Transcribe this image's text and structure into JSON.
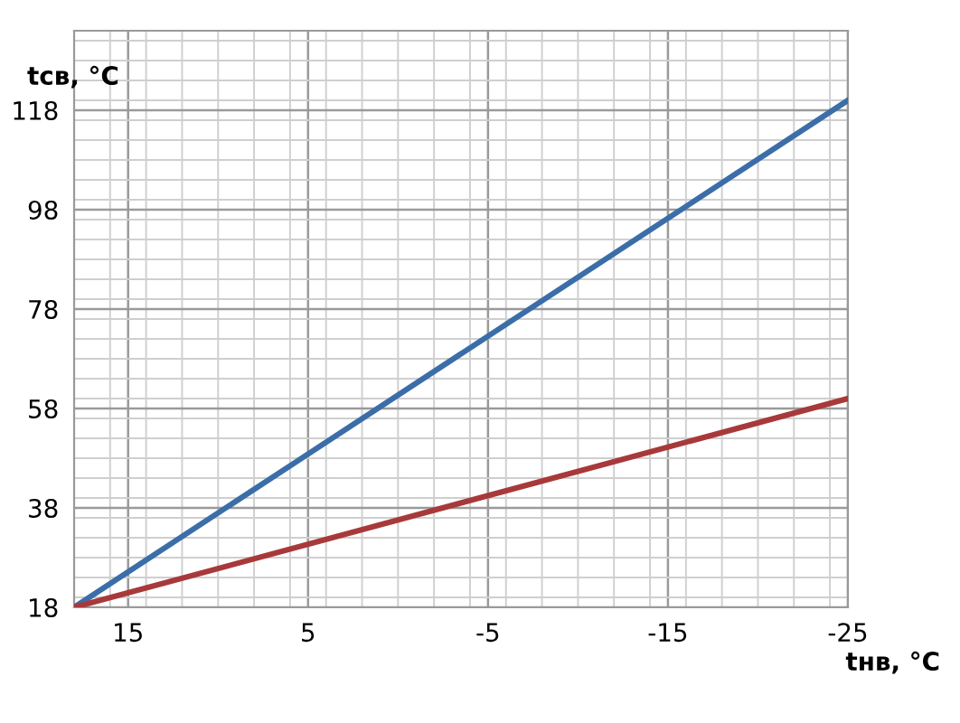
{
  "chart_data": {
    "type": "line",
    "xlabel": "tнв, °С",
    "ylabel": "tсв, °С",
    "x": [
      18,
      -25
    ],
    "series": [
      {
        "color": "#3b6ea8",
        "values": [
          18,
          120
        ]
      },
      {
        "color": "#a8393a",
        "values": [
          18,
          60
        ]
      }
    ],
    "xlim": [
      18,
      -25
    ],
    "xticks": [
      15,
      5,
      -5,
      -15,
      -25
    ],
    "ylim": [
      18,
      134
    ],
    "yticks": [
      18,
      38,
      58,
      78,
      98,
      118
    ],
    "grid": true,
    "marker": "none",
    "line_style": "solid"
  }
}
